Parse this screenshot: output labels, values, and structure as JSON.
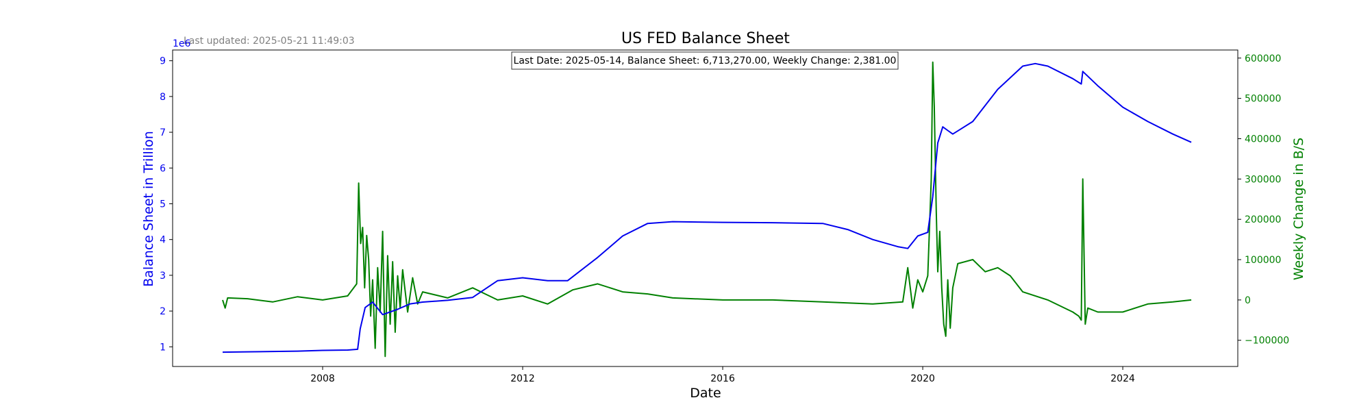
{
  "chart_data": {
    "type": "line",
    "title": "US FED Balance Sheet",
    "last_updated": "Last updated: 2025-05-21 11:49:03",
    "annotation": "Last Date: 2025-05-14, Balance Sheet: 6,713,270.00, Weekly Change: 2,381.00",
    "xlabel": "Date",
    "ylabel_left": "Balance Sheet in Trillion",
    "ylabel_right": "Weekly Change in B/S",
    "left_scale_label": "1e6",
    "x_ticks": [
      "2008",
      "2012",
      "2016",
      "2020",
      "2024"
    ],
    "x_tick_years": [
      2008,
      2012,
      2016,
      2020,
      2024
    ],
    "xlim": [
      2005.0,
      2026.3
    ],
    "ylim_left": [
      0.45,
      9.3
    ],
    "y_ticks_left": [
      "1",
      "2",
      "3",
      "4",
      "5",
      "6",
      "7",
      "8",
      "9"
    ],
    "y_tick_values_left": [
      1,
      2,
      3,
      4,
      5,
      6,
      7,
      8,
      9
    ],
    "ylim_right": [
      -165000,
      620000
    ],
    "y_ticks_right": [
      "−100000",
      "0",
      "100000",
      "200000",
      "300000",
      "400000",
      "500000",
      "600000"
    ],
    "y_tick_values_right": [
      -100000,
      0,
      100000,
      200000,
      300000,
      400000,
      500000,
      600000
    ],
    "colors": {
      "balance": "#0000ee",
      "weekly": "#008000",
      "left_axis": "#0000ee",
      "right_axis": "#008000"
    },
    "series": [
      {
        "name": "Balance Sheet",
        "axis": "left",
        "x": [
          2006.0,
          2006.5,
          2007.0,
          2007.5,
          2008.0,
          2008.5,
          2008.7,
          2008.75,
          2008.85,
          2009.0,
          2009.2,
          2009.5,
          2009.75,
          2010.0,
          2010.5,
          2011.0,
          2011.5,
          2012.0,
          2012.5,
          2012.9,
          2013.5,
          2014.0,
          2014.5,
          2015.0,
          2016.0,
          2017.0,
          2018.0,
          2018.5,
          2019.0,
          2019.5,
          2019.7,
          2019.9,
          2020.1,
          2020.2,
          2020.3,
          2020.4,
          2020.5,
          2020.6,
          2021.0,
          2021.5,
          2022.0,
          2022.25,
          2022.5,
          2023.0,
          2023.17,
          2023.2,
          2023.5,
          2024.0,
          2024.5,
          2025.0,
          2025.37
        ],
        "y": [
          0.85,
          0.86,
          0.87,
          0.88,
          0.9,
          0.91,
          0.93,
          1.5,
          2.1,
          2.25,
          1.9,
          2.05,
          2.2,
          2.25,
          2.3,
          2.38,
          2.85,
          2.93,
          2.85,
          2.85,
          3.5,
          4.1,
          4.45,
          4.5,
          4.48,
          4.47,
          4.45,
          4.28,
          4.0,
          3.8,
          3.75,
          4.1,
          4.2,
          5.2,
          6.7,
          7.15,
          7.05,
          6.95,
          7.3,
          8.2,
          8.85,
          8.92,
          8.85,
          8.5,
          8.35,
          8.7,
          8.3,
          7.7,
          7.3,
          6.95,
          6.72
        ]
      },
      {
        "name": "Weekly Change",
        "axis": "right",
        "x": [
          2006.0,
          2006.05,
          2006.1,
          2006.5,
          2007.0,
          2007.5,
          2008.0,
          2008.5,
          2008.68,
          2008.72,
          2008.76,
          2008.8,
          2008.84,
          2008.88,
          2008.92,
          2008.96,
          2009.0,
          2009.05,
          2009.1,
          2009.15,
          2009.2,
          2009.25,
          2009.3,
          2009.35,
          2009.4,
          2009.45,
          2009.5,
          2009.55,
          2009.6,
          2009.7,
          2009.8,
          2009.9,
          2010.0,
          2010.5,
          2011.0,
          2011.25,
          2011.5,
          2012.0,
          2012.5,
          2013.0,
          2013.5,
          2014.0,
          2014.5,
          2015.0,
          2016.0,
          2017.0,
          2018.0,
          2019.0,
          2019.6,
          2019.7,
          2019.8,
          2019.9,
          2020.0,
          2020.1,
          2020.17,
          2020.2,
          2020.23,
          2020.27,
          2020.3,
          2020.34,
          2020.38,
          2020.42,
          2020.46,
          2020.5,
          2020.55,
          2020.6,
          2020.7,
          2021.0,
          2021.25,
          2021.5,
          2021.75,
          2022.0,
          2022.5,
          2023.0,
          2023.12,
          2023.17,
          2023.2,
          2023.25,
          2023.3,
          2023.5,
          2024.0,
          2024.5,
          2025.0,
          2025.37
        ],
        "y": [
          0,
          -20000,
          5000,
          3000,
          -5000,
          8000,
          0,
          10000,
          40000,
          290000,
          140000,
          180000,
          30000,
          160000,
          100000,
          -40000,
          50000,
          -120000,
          80000,
          -30000,
          170000,
          -140000,
          110000,
          -60000,
          95000,
          -80000,
          60000,
          -20000,
          75000,
          -30000,
          55000,
          -10000,
          20000,
          5000,
          30000,
          15000,
          0,
          10000,
          -10000,
          25000,
          40000,
          20000,
          15000,
          5000,
          0,
          0,
          -5000,
          -10000,
          -5000,
          80000,
          -20000,
          50000,
          20000,
          60000,
          300000,
          590000,
          480000,
          220000,
          70000,
          170000,
          30000,
          -60000,
          -90000,
          50000,
          -70000,
          30000,
          90000,
          100000,
          70000,
          80000,
          60000,
          20000,
          0,
          -30000,
          -40000,
          -50000,
          300000,
          -60000,
          -20000,
          -30000,
          -30000,
          -10000,
          -5000,
          0
        ]
      }
    ]
  }
}
